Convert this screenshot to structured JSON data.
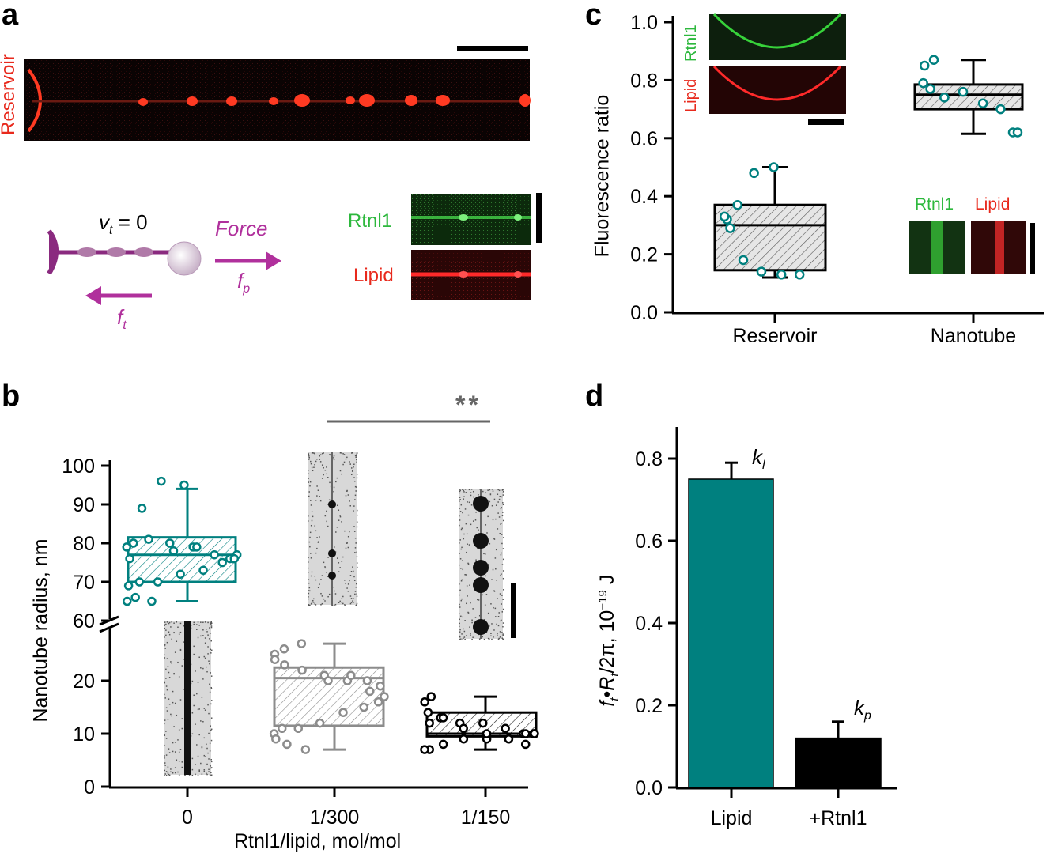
{
  "panels": {
    "a": "a",
    "b": "b",
    "c": "c",
    "d": "d"
  },
  "colors": {
    "teal": "#00807f",
    "gray": "#8c8c8c",
    "black": "#000000",
    "red": "#e8291c",
    "green": "#2db83d",
    "magenta": "#b0309c"
  },
  "panel_a": {
    "reservoir_label": "Reservoir",
    "vt_v": "v",
    "vt_sub": "t",
    "vt_eq": "= 0",
    "force_label": "Force",
    "fp_f": "f",
    "fp_sub": "p",
    "ft_f": "f",
    "ft_sub": "t",
    "rtnl1_label": "Rtnl1",
    "lipid_label": "Lipid"
  },
  "chart_data": [
    {
      "id": "b",
      "type": "box",
      "ylabel": "Nanotube radius, nm",
      "xlabel": "Rtnl1/lipid, mol/mol",
      "categories": [
        "0",
        "1/300",
        "1/150"
      ],
      "y_ticks_lower": [
        0,
        10,
        20
      ],
      "y_ticks_upper": [
        60,
        70,
        80,
        90,
        100
      ],
      "axis_break": true,
      "significance": "**",
      "boxes": [
        {
          "name": "0",
          "q1": 70,
          "median": 77,
          "q3": 81.5,
          "whisker_low": 65,
          "whisker_high": 94,
          "points": [
            95,
            96,
            89,
            76,
            79,
            80,
            81,
            80,
            79,
            77,
            76,
            77,
            76,
            75,
            73,
            72,
            70,
            70,
            69,
            65,
            66,
            65,
            78,
            79
          ]
        },
        {
          "name": "1/300",
          "q1": 11.5,
          "median": 20.5,
          "q3": 22.5,
          "whisker_low": 7,
          "whisker_high": 27,
          "points": [
            27,
            26,
            25,
            24,
            23,
            22,
            21,
            20,
            20,
            19,
            17,
            16,
            15,
            14,
            12,
            11,
            11,
            10,
            9,
            8,
            7,
            20,
            21,
            18
          ]
        },
        {
          "name": "1/150",
          "q1": 9.5,
          "median": 10,
          "q3": 14,
          "whisker_low": 7,
          "whisker_high": 17,
          "points": [
            17,
            16,
            14,
            13,
            12,
            12,
            11,
            10,
            10,
            10,
            10,
            9,
            9,
            9,
            8,
            7,
            7,
            12,
            13,
            11,
            10,
            9,
            8,
            10
          ]
        }
      ]
    },
    {
      "id": "c",
      "type": "box",
      "ylabel": "Fluorescence ratio",
      "categories": [
        "Reservoir",
        "Nanotube"
      ],
      "y_ticks": [
        "0.0",
        "0.2",
        "0.4",
        "0.6",
        "0.8",
        "1.0"
      ],
      "ylim": [
        0,
        1.0
      ],
      "inset_labels": {
        "rtnl1": "Rtnl1",
        "lipid": "Lipid"
      },
      "boxes": [
        {
          "name": "Reservoir",
          "q1": 0.145,
          "median": 0.3,
          "q3": 0.37,
          "whisker_low": 0.12,
          "whisker_high": 0.5,
          "points": [
            0.5,
            0.48,
            0.37,
            0.32,
            0.33,
            0.29,
            0.18,
            0.14,
            0.13,
            0.13
          ]
        },
        {
          "name": "Nanotube",
          "q1": 0.7,
          "median": 0.75,
          "q3": 0.785,
          "whisker_low": 0.615,
          "whisker_high": 0.87,
          "points": [
            0.87,
            0.85,
            0.79,
            0.77,
            0.74,
            0.76,
            0.72,
            0.7,
            0.62,
            0.62
          ]
        }
      ]
    },
    {
      "id": "d",
      "type": "bar",
      "ylabel": "f_t·R_t/2π, 10^-19 J",
      "ylabel_parts": {
        "f": "f",
        "t1": "t",
        "dot": "•",
        "R": "R",
        "t2": "t",
        "rest": "/2π, 10",
        "exp": "−19",
        "unit": " J"
      },
      "categories": [
        "Lipid",
        "+Rtnl1"
      ],
      "values": [
        0.75,
        0.12
      ],
      "errors": [
        0.04,
        0.04
      ],
      "bar_colors": [
        "#00807f",
        "#000000"
      ],
      "y_ticks": [
        "0.0",
        "0.2",
        "0.4",
        "0.6",
        "0.8"
      ],
      "ylim": [
        0,
        0.88
      ],
      "annotations": [
        {
          "k": "k",
          "sub": "l"
        },
        {
          "k": "k",
          "sub": "p"
        }
      ]
    }
  ]
}
